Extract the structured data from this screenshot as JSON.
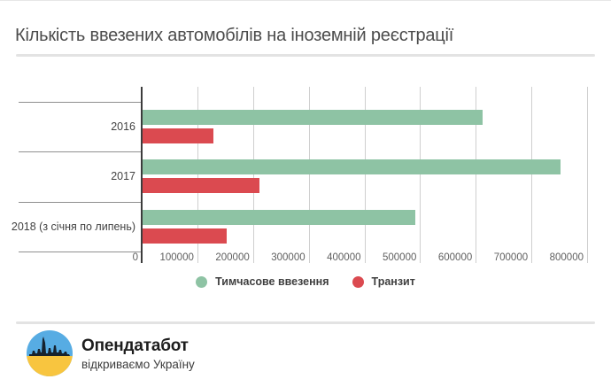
{
  "title": "Кількість ввезених автомобілів на іноземній реєстрації",
  "chart_data": {
    "type": "bar",
    "orientation": "horizontal",
    "title": "Кількість ввезених автомобілів на іноземній реєстрації",
    "categories": [
      "2016",
      "2017",
      "2018 (з січня по липень)"
    ],
    "series": [
      {
        "name": "Тимчасове ввезення",
        "color": "#8EC3A4",
        "values": [
          610000,
          750000,
          490000
        ]
      },
      {
        "name": "Транзит",
        "color": "#DB4A50",
        "values": [
          127000,
          210000,
          151000
        ]
      }
    ],
    "xlim": [
      0,
      800000
    ],
    "x_ticks": [
      0,
      100000,
      200000,
      300000,
      400000,
      500000,
      600000,
      700000,
      800000
    ],
    "grid": "vertical",
    "legend_position": "bottom"
  },
  "legend": {
    "items": [
      {
        "label": "Тимчасове ввезення",
        "color": "#8EC3A4"
      },
      {
        "label": "Транзит",
        "color": "#DB4A50"
      }
    ]
  },
  "footer": {
    "brand": "Опендатабот",
    "tagline": "відкриваємо Україну",
    "logo_colors": {
      "blue": "#57ACE3",
      "yellow": "#F8C53F",
      "navy": "#16222E"
    }
  }
}
